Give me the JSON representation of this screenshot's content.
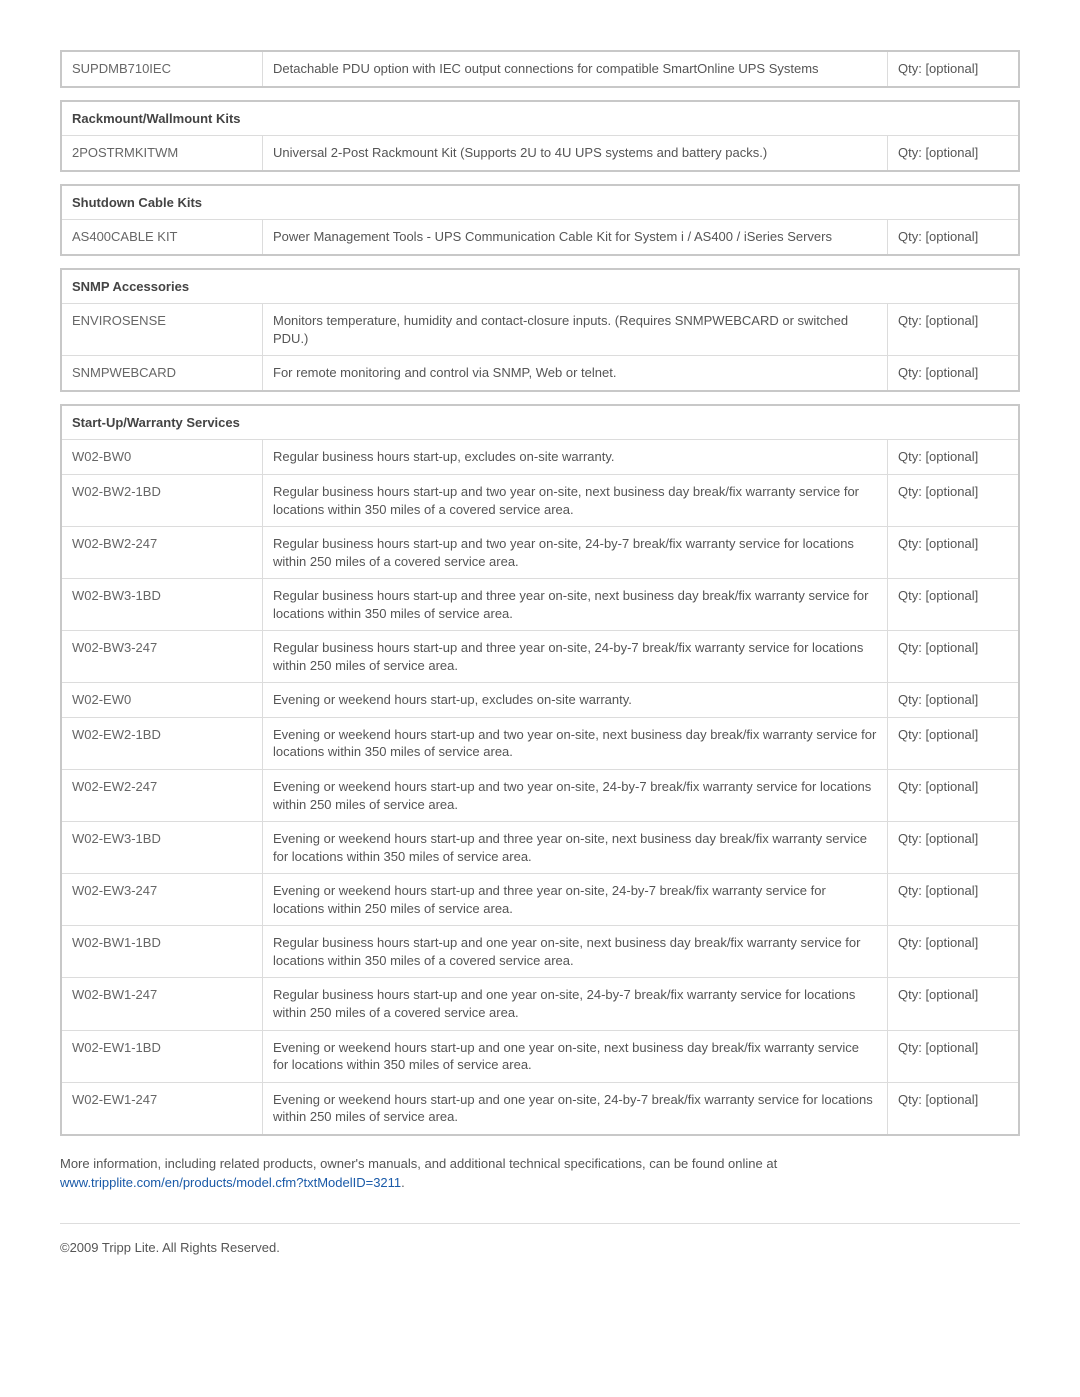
{
  "qty_label": "Qty: [optional]",
  "standalone": {
    "rows": [
      {
        "code": "SUPDMB710IEC",
        "desc": "Detachable PDU option with IEC output connections for compatible SmartOnline UPS Systems"
      }
    ]
  },
  "sections": [
    {
      "title": "Rackmount/Wallmount Kits",
      "rows": [
        {
          "code": "2POSTRMKITWM",
          "desc": "Universal 2-Post Rackmount Kit (Supports 2U to 4U UPS systems and battery packs.)"
        }
      ]
    },
    {
      "title": "Shutdown Cable Kits",
      "rows": [
        {
          "code": "AS400CABLE KIT",
          "desc": "Power Management Tools - UPS Communication Cable Kit for System i / AS400 / iSeries Servers"
        }
      ]
    },
    {
      "title": "SNMP Accessories",
      "rows": [
        {
          "code": "ENVIROSENSE",
          "desc": "Monitors temperature, humidity and contact-closure inputs. (Requires SNMPWEBCARD or switched PDU.)"
        },
        {
          "code": "SNMPWEBCARD",
          "desc": "For remote monitoring and control via SNMP, Web or telnet."
        }
      ]
    },
    {
      "title": "Start-Up/Warranty Services",
      "rows": [
        {
          "code": "W02-BW0",
          "desc": "Regular business hours start-up, excludes on-site warranty."
        },
        {
          "code": "W02-BW2-1BD",
          "desc": "Regular business hours start-up and two year on-site, next business day break/fix warranty service for locations within 350 miles of a covered service area."
        },
        {
          "code": "W02-BW2-247",
          "desc": "Regular business hours start-up and two year on-site, 24-by-7 break/fix warranty service for locations within 250 miles of a covered service area."
        },
        {
          "code": "W02-BW3-1BD",
          "desc": "Regular business hours start-up and three year on-site, next business day break/fix warranty service for locations within 350 miles of service area."
        },
        {
          "code": "W02-BW3-247",
          "desc": "Regular business hours start-up and three year on-site, 24-by-7 break/fix warranty service for locations within 250 miles of service area."
        },
        {
          "code": "W02-EW0",
          "desc": "Evening or weekend hours start-up, excludes on-site warranty."
        },
        {
          "code": "W02-EW2-1BD",
          "desc": "Evening or weekend hours start-up and two year on-site, next business day break/fix warranty service for locations within 350 miles of service area."
        },
        {
          "code": "W02-EW2-247",
          "desc": "Evening or weekend hours start-up and two year on-site, 24-by-7 break/fix warranty service for locations within 250 miles of service area."
        },
        {
          "code": "W02-EW3-1BD",
          "desc": "Evening or weekend hours start-up and three year on-site, next business day break/fix warranty service for locations within 350 miles of service area."
        },
        {
          "code": "W02-EW3-247",
          "desc": "Evening or weekend hours start-up and three year on-site, 24-by-7 break/fix warranty service for locations within 250 miles of service area."
        },
        {
          "code": "W02-BW1-1BD",
          "desc": "Regular business hours start-up and one year on-site, next business day break/fix warranty service for locations within 350 miles of a covered service area."
        },
        {
          "code": "W02-BW1-247",
          "desc": "Regular business hours start-up and one year on-site, 24-by-7 break/fix warranty service for locations within 250 miles of a covered service area."
        },
        {
          "code": "W02-EW1-1BD",
          "desc": "Evening or weekend hours start-up and one year on-site, next business day break/fix warranty service for locations within 350 miles of service area."
        },
        {
          "code": "W02-EW1-247",
          "desc": "Evening or weekend hours start-up and one year on-site, 24-by-7 break/fix warranty service for locations within 250 miles of service area."
        }
      ]
    }
  ],
  "footer": {
    "note_prefix": "More information, including related products, owner's manuals, and additional technical specifications, can be found online at ",
    "link_text": "www.tripplite.com/en/products/model.cfm?txtModelID=3211",
    "note_suffix": ".",
    "copyright": "©2009 Tripp Lite.  All Rights Reserved."
  }
}
